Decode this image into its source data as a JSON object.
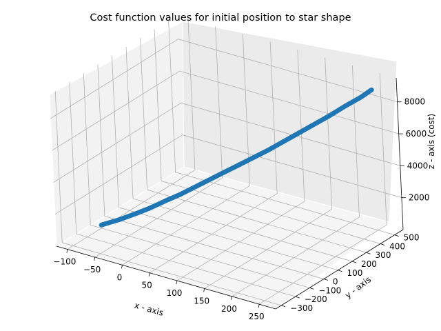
{
  "chart_data": {
    "type": "scatter",
    "projection": "3d",
    "title": "Cost function values for initial position to star shape",
    "xlabel": "x - axis",
    "ylabel": "y - axis",
    "zlabel": "z - axis (cost)",
    "xlim": [
      -120,
      280
    ],
    "ylim": [
      -340,
      560
    ],
    "zlim": [
      0,
      9500
    ],
    "x_ticks": [
      "−100",
      "−50",
      "0",
      "50",
      "100",
      "150",
      "200",
      "250"
    ],
    "y_ticks": [
      "−300",
      "−200",
      "−100",
      "0",
      "100",
      "200",
      "300",
      "400",
      "500"
    ],
    "z_ticks": [
      "2000",
      "4000",
      "6000",
      "8000"
    ],
    "grid": true,
    "legend": "none",
    "series": [
      {
        "color": "#1f77b4",
        "points": [
          {
            "x": -100,
            "y": -100,
            "z": 200
          },
          {
            "x": -80,
            "y": -50,
            "z": 450
          },
          {
            "x": -60,
            "y": -10,
            "z": 800
          },
          {
            "x": -40,
            "y": 20,
            "z": 1200
          },
          {
            "x": -20,
            "y": 60,
            "z": 1650
          },
          {
            "x": 0,
            "y": 80,
            "z": 2100
          },
          {
            "x": 20,
            "y": 110,
            "z": 2600
          },
          {
            "x": 40,
            "y": 140,
            "z": 3100
          },
          {
            "x": 60,
            "y": 170,
            "z": 3600
          },
          {
            "x": 80,
            "y": 195,
            "z": 4100
          },
          {
            "x": 100,
            "y": 225,
            "z": 4600
          },
          {
            "x": 120,
            "y": 255,
            "z": 5100
          },
          {
            "x": 140,
            "y": 290,
            "z": 5650
          },
          {
            "x": 160,
            "y": 320,
            "z": 6200
          },
          {
            "x": 180,
            "y": 355,
            "z": 6750
          },
          {
            "x": 200,
            "y": 390,
            "z": 7300
          },
          {
            "x": 220,
            "y": 425,
            "z": 7900
          },
          {
            "x": 240,
            "y": 460,
            "z": 8450
          },
          {
            "x": 255,
            "y": 480,
            "z": 8950
          }
        ]
      }
    ]
  }
}
